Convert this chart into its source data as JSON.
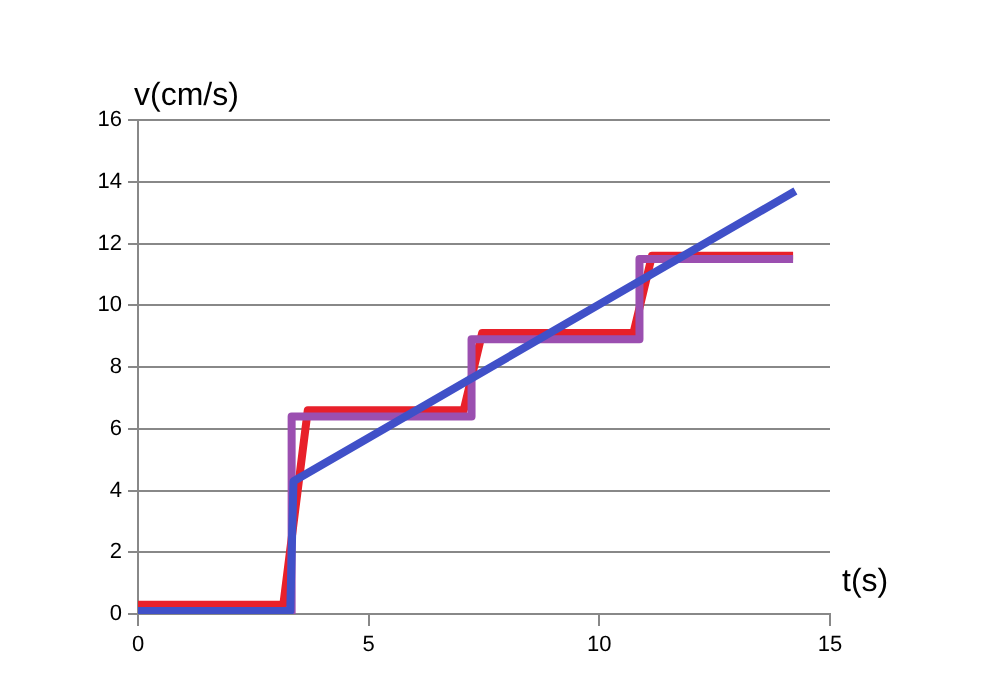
{
  "chart_data": {
    "type": "line",
    "xlabel": "t(s)",
    "ylabel": "v(cm/s)",
    "xlim": [
      0,
      15
    ],
    "xticks": [
      0,
      5,
      10,
      15
    ],
    "ylim": [
      0,
      16
    ],
    "yticks": [
      0,
      2,
      4,
      6,
      8,
      10,
      12,
      14,
      16
    ],
    "grid": "y",
    "legend": false,
    "marker": "none",
    "line_style": "solid",
    "series": [
      {
        "color": "#4050c8",
        "x": [
          0,
          3.3,
          3.37,
          14.25
        ],
        "values": [
          0.1,
          0.1,
          4.3,
          13.7
        ]
      },
      {
        "color": "#9b4fb0",
        "x": [
          0,
          3.33,
          3.33,
          7.23,
          7.23,
          10.87,
          10.87,
          14.2
        ],
        "values": [
          0,
          0,
          6.4,
          6.4,
          8.9,
          8.9,
          11.5,
          11.5
        ]
      },
      {
        "color": "#e8202a",
        "x": [
          0,
          3.15,
          3.68,
          7.06,
          7.46,
          10.74,
          11.14,
          14.2
        ],
        "values": [
          0.3,
          0.3,
          6.6,
          6.6,
          9.1,
          9.1,
          11.6,
          11.6
        ]
      }
    ]
  }
}
